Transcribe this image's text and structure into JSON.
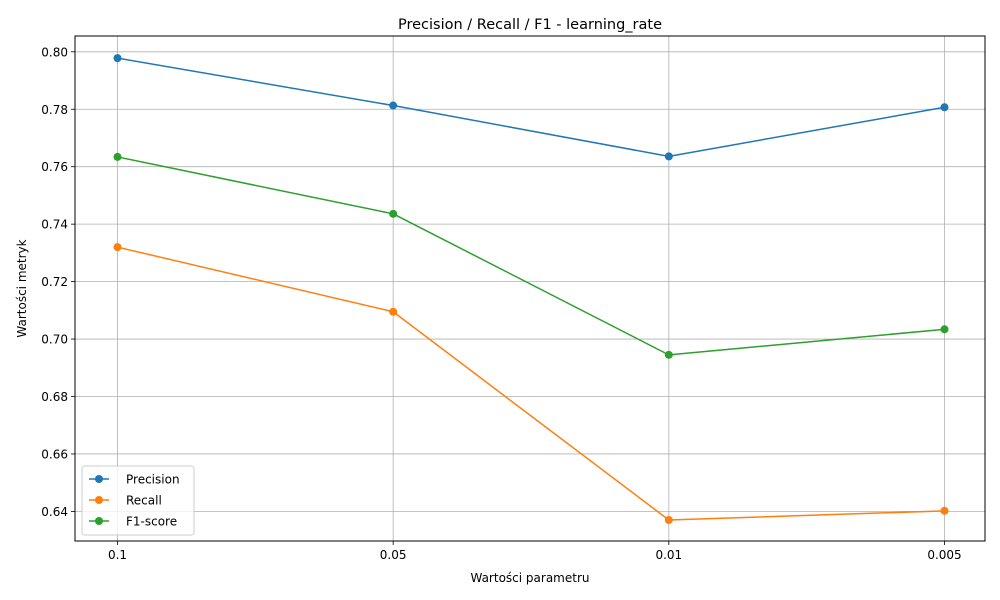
{
  "chart_data": {
    "type": "line",
    "title": "Precision / Recall / F1 - learning_rate",
    "xlabel": "Wartości parametru",
    "ylabel": "Wartości metryk",
    "categories": [
      "0.1",
      "0.05",
      "0.01",
      "0.005"
    ],
    "series": [
      {
        "name": "Precision",
        "color": "#1f77b4",
        "values": [
          0.7978,
          0.7813,
          0.7636,
          0.7807
        ]
      },
      {
        "name": "Recall",
        "color": "#ff7f0e",
        "values": [
          0.732,
          0.7095,
          0.637,
          0.6402
        ]
      },
      {
        "name": "F1-score",
        "color": "#2ca02c",
        "values": [
          0.7634,
          0.7436,
          0.6945,
          0.7034
        ]
      }
    ],
    "ylim": [
      0.6297,
      0.8055
    ],
    "yticks": [
      0.64,
      0.66,
      0.68,
      0.7,
      0.72,
      0.74,
      0.76,
      0.78,
      0.8
    ],
    "ytick_labels": [
      "0.64",
      "0.66",
      "0.68",
      "0.70",
      "0.72",
      "0.74",
      "0.76",
      "0.78",
      "0.80"
    ],
    "grid": true,
    "legend_position": "lower-left",
    "marker": "circle"
  }
}
